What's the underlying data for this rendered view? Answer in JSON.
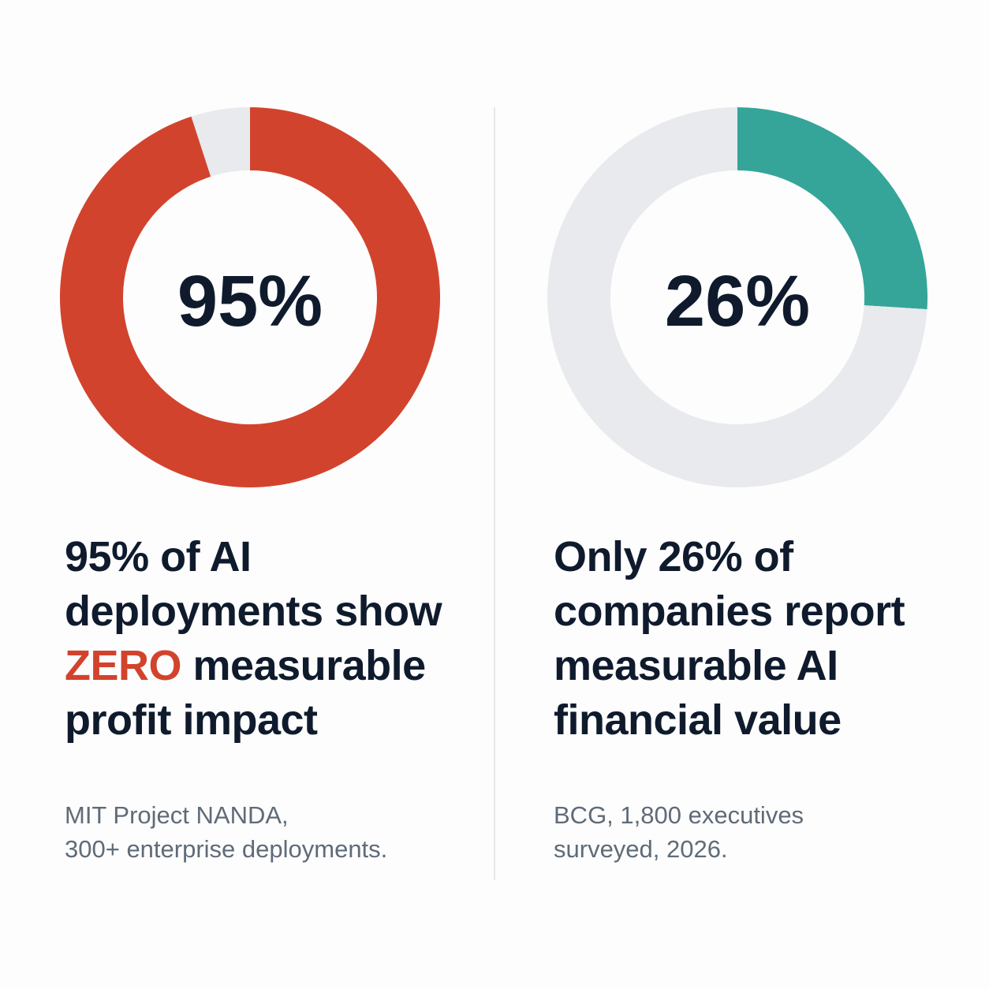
{
  "chart_data": [
    {
      "type": "pie",
      "variant": "donut",
      "center_label": "95%",
      "slices": [
        {
          "value": 95,
          "color": "#d2432d"
        },
        {
          "value": 5,
          "color": "#e8eaed"
        }
      ],
      "headline": {
        "line1": "95% of AI",
        "line2": "deployments show",
        "line3_accent": "ZERO",
        "line3_rest": " measurable",
        "line4": "profit impact"
      },
      "source": {
        "line1": "MIT Project NANDA,",
        "line2": "300+ enterprise deployments."
      }
    },
    {
      "type": "pie",
      "variant": "donut",
      "center_label": "26%",
      "slices": [
        {
          "value": 26,
          "color": "#35a599"
        },
        {
          "value": 74,
          "color": "#e8eaed"
        }
      ],
      "headline": {
        "line1": "Only 26% of",
        "line2": "companies report",
        "line3": "measurable AI",
        "line4": "financial value"
      },
      "source": {
        "line1": "BCG, 1,800 executives",
        "line2": "surveyed, 2026."
      }
    }
  ],
  "colors": {
    "accent_red": "#d2432d",
    "accent_teal": "#35a599",
    "track": "#e8eaed",
    "text": "#0f1b2d",
    "muted": "#5f6b78"
  }
}
